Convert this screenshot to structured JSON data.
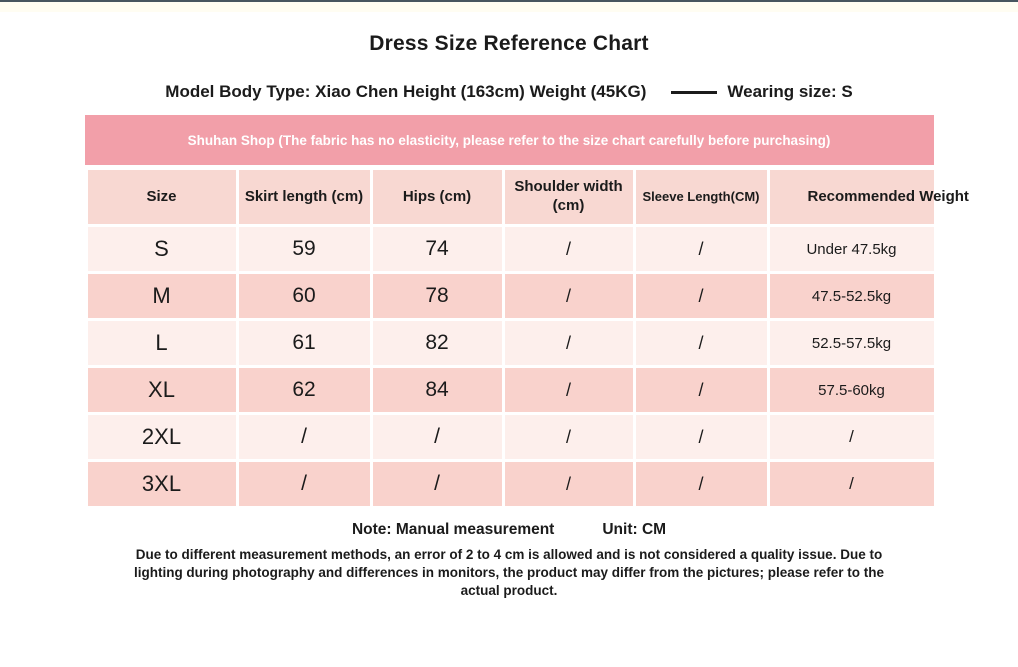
{
  "page": {
    "title": "Dress Size Reference Chart",
    "model_info": "Model Body Type: Xiao Chen Height (163cm) Weight (45KG)",
    "wearing_size": "Wearing size: S",
    "banner_text": "Shuhan Shop (The fabric has no elasticity, please refer to the size chart carefully before purchasing)",
    "note_label": "Note: Manual measurement",
    "unit_label": "Unit: CM",
    "disclaimer": "Due to different measurement methods, an error of 2 to 4 cm is allowed and is not considered a quality issue. Due to lighting during photography and differences in monitors, the product may differ from the pictures; please refer to the actual product."
  },
  "colors": {
    "top_line": "#47555f",
    "banner_bg": "#f29fa9",
    "banner_text": "#ffffff",
    "header_row_bg": "#f8d8d2",
    "row_dark_bg": "#f9d2cc",
    "row_light_bg": "#fdefec",
    "text": "#1b1b1b"
  },
  "chart_data": {
    "type": "table",
    "title": "Dress Size Reference Chart",
    "unit": "CM",
    "columns": [
      "Size",
      "Skirt length (cm)",
      "Hips (cm)",
      "Shoulder width (cm)",
      "Sleeve Length(CM)",
      "Recommended Weight"
    ],
    "rows": [
      [
        "S",
        "59",
        "74",
        "/",
        "/",
        "Under 47.5kg"
      ],
      [
        "M",
        "60",
        "78",
        "/",
        "/",
        "47.5-52.5kg"
      ],
      [
        "L",
        "61",
        "82",
        "/",
        "/",
        "52.5-57.5kg"
      ],
      [
        "XL",
        "62",
        "84",
        "/",
        "/",
        "57.5-60kg"
      ],
      [
        "2XL",
        "/",
        "/",
        "/",
        "/",
        "/"
      ],
      [
        "3XL",
        "/",
        "/",
        "/",
        "/",
        "/"
      ]
    ],
    "row_shading": [
      "light",
      "dark",
      "light",
      "dark",
      "light",
      "dark"
    ]
  }
}
